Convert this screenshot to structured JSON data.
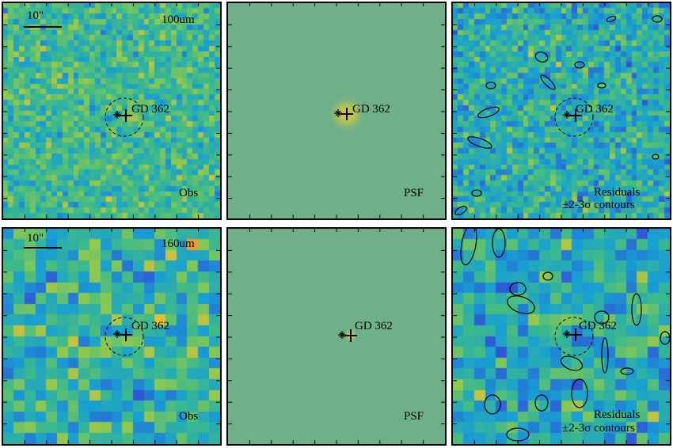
{
  "target": {
    "name": "GD 362"
  },
  "scale_bar": {
    "label": "10\""
  },
  "rows": [
    {
      "band": "100um",
      "cells": 40,
      "panels": [
        {
          "kind": "observed",
          "label": "Obs"
        },
        {
          "kind": "psf",
          "label": "PSF"
        },
        {
          "kind": "residual",
          "label_line1": "Residuals",
          "label_line2": "±2-3σ contours"
        }
      ]
    },
    {
      "band": "160um",
      "cells": 20,
      "panels": [
        {
          "kind": "observed",
          "label": "Obs"
        },
        {
          "kind": "psf",
          "label": "PSF"
        },
        {
          "kind": "residual",
          "label_line1": "Residuals",
          "label_line2": "±2-3σ contours"
        }
      ]
    }
  ],
  "colors": {
    "background": "#6fb08a",
    "psf_peak": "#e8c03a",
    "contour": "#000000"
  }
}
